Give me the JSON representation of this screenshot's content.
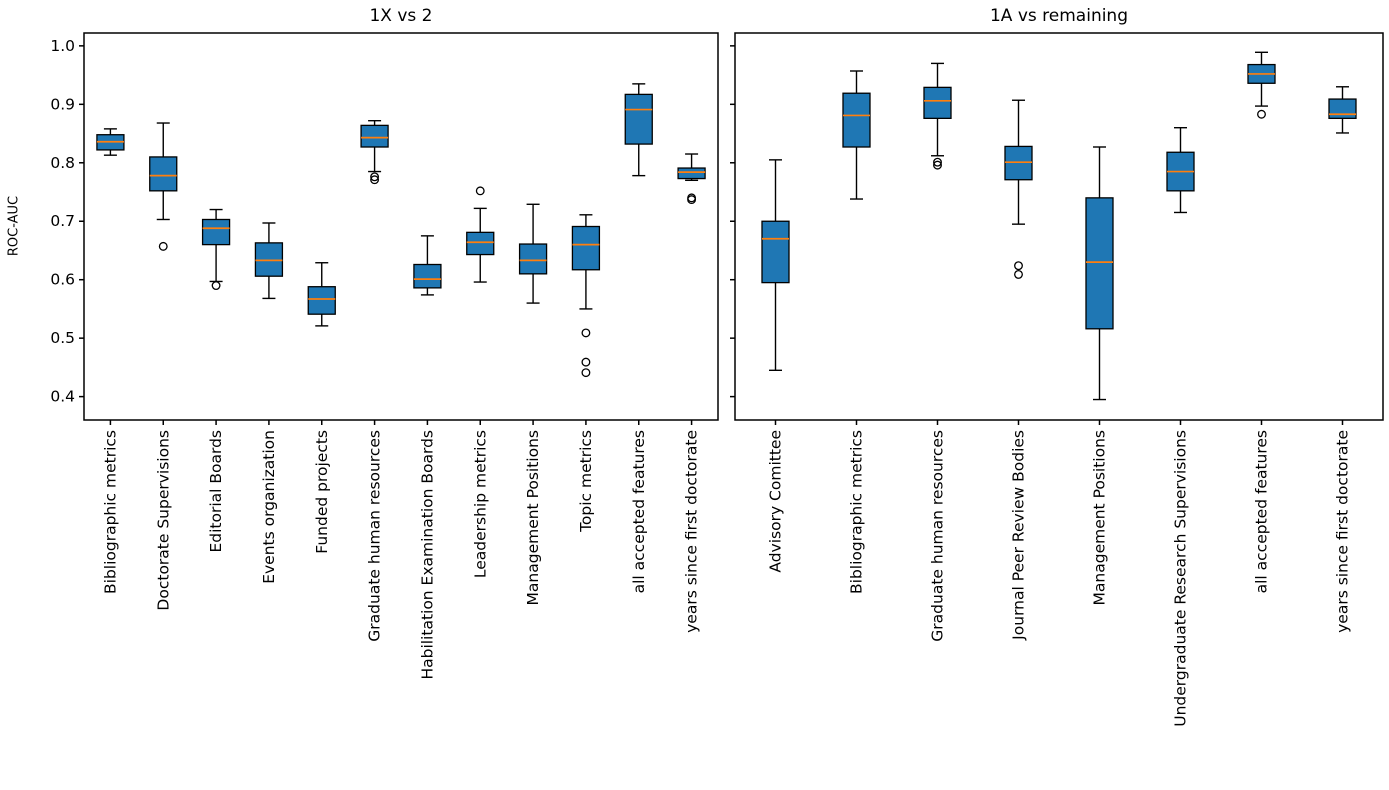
{
  "figure": {
    "background": "#ffffff",
    "text_color": "#000000"
  },
  "chart_data": [
    {
      "type": "box",
      "title": "1X vs 2",
      "ylabel": "ROC-AUC",
      "xlabel": "",
      "ylim": [
        0.36,
        1.022
      ],
      "yticks": [
        0.4,
        0.5,
        0.6,
        0.7,
        0.8,
        0.9,
        1.0
      ],
      "ytick_labels": [
        "0.4",
        "0.5",
        "0.6",
        "0.7",
        "0.8",
        "0.9",
        "1.0"
      ],
      "show_ytick_labels": true,
      "grid": false,
      "legend": "none",
      "box_color": "#1f77b4",
      "median_color": "#ff7f0e",
      "edge_color": "#000000",
      "categories": [
        "Bibliographic metrics",
        "Doctorate Supervisions",
        "Editorial Boards",
        "Events organization",
        "Funded projects",
        "Graduate human resources",
        "Habilitation Examination Boards",
        "Leadership metrics",
        "Management Positions",
        "Topic metrics",
        "all accepted features",
        "years since first doctorate"
      ],
      "boxes": [
        {
          "category": "Bibliographic metrics",
          "whislo": 0.813,
          "q1": 0.822,
          "med": 0.836,
          "q3": 0.848,
          "whishi": 0.858,
          "fliers": []
        },
        {
          "category": "Doctorate Supervisions",
          "whislo": 0.703,
          "q1": 0.752,
          "med": 0.778,
          "q3": 0.81,
          "whishi": 0.868,
          "fliers": [
            0.657
          ]
        },
        {
          "category": "Editorial Boards",
          "whislo": 0.597,
          "q1": 0.66,
          "med": 0.688,
          "q3": 0.703,
          "whishi": 0.72,
          "fliers": [
            0.59
          ]
        },
        {
          "category": "Events organization",
          "whislo": 0.568,
          "q1": 0.606,
          "med": 0.633,
          "q3": 0.663,
          "whishi": 0.697,
          "fliers": []
        },
        {
          "category": "Funded projects",
          "whislo": 0.521,
          "q1": 0.541,
          "med": 0.567,
          "q3": 0.588,
          "whishi": 0.629,
          "fliers": []
        },
        {
          "category": "Graduate human resources",
          "whislo": 0.785,
          "q1": 0.827,
          "med": 0.843,
          "q3": 0.864,
          "whishi": 0.872,
          "fliers": [
            0.776,
            0.771
          ]
        },
        {
          "category": "Habilitation Examination Boards",
          "whislo": 0.574,
          "q1": 0.586,
          "med": 0.601,
          "q3": 0.626,
          "whishi": 0.675,
          "fliers": []
        },
        {
          "category": "Leadership metrics",
          "whislo": 0.596,
          "q1": 0.643,
          "med": 0.664,
          "q3": 0.681,
          "whishi": 0.722,
          "fliers": [
            0.752
          ]
        },
        {
          "category": "Management Positions",
          "whislo": 0.56,
          "q1": 0.61,
          "med": 0.633,
          "q3": 0.661,
          "whishi": 0.729,
          "fliers": []
        },
        {
          "category": "Topic metrics",
          "whislo": 0.55,
          "q1": 0.617,
          "med": 0.66,
          "q3": 0.691,
          "whishi": 0.711,
          "fliers": [
            0.509,
            0.459,
            0.441
          ]
        },
        {
          "category": "all accepted features",
          "whislo": 0.778,
          "q1": 0.832,
          "med": 0.891,
          "q3": 0.917,
          "whishi": 0.935,
          "fliers": []
        },
        {
          "category": "years since first doctorate",
          "whislo": 0.77,
          "q1": 0.773,
          "med": 0.784,
          "q3": 0.791,
          "whishi": 0.815,
          "fliers": [
            0.74,
            0.737
          ]
        }
      ]
    },
    {
      "type": "box",
      "title": "1A vs remaining",
      "ylabel": "",
      "xlabel": "",
      "ylim": [
        0.36,
        1.022
      ],
      "yticks": [
        0.4,
        0.5,
        0.6,
        0.7,
        0.8,
        0.9,
        1.0
      ],
      "ytick_labels": [
        "0.4",
        "0.5",
        "0.6",
        "0.7",
        "0.8",
        "0.9",
        "1.0"
      ],
      "show_ytick_labels": false,
      "grid": false,
      "legend": "none",
      "box_color": "#1f77b4",
      "median_color": "#ff7f0e",
      "edge_color": "#000000",
      "categories": [
        "Advisory Comittee",
        "Bibliographic metrics",
        "Graduate human resources",
        "Journal Peer Review Bodies",
        "Management Positions",
        "Undergraduate Research Supervisions",
        "all accepted features",
        "years since first doctorate"
      ],
      "boxes": [
        {
          "category": "Advisory Comittee",
          "whislo": 0.445,
          "q1": 0.595,
          "med": 0.67,
          "q3": 0.7,
          "whishi": 0.805,
          "fliers": []
        },
        {
          "category": "Bibliographic metrics",
          "whislo": 0.738,
          "q1": 0.827,
          "med": 0.881,
          "q3": 0.919,
          "whishi": 0.957,
          "fliers": []
        },
        {
          "category": "Graduate human resources",
          "whislo": 0.812,
          "q1": 0.876,
          "med": 0.906,
          "q3": 0.929,
          "whishi": 0.97,
          "fliers": [
            0.801,
            0.796
          ]
        },
        {
          "category": "Journal Peer Review Bodies",
          "whislo": 0.695,
          "q1": 0.771,
          "med": 0.801,
          "q3": 0.828,
          "whishi": 0.907,
          "fliers": [
            0.624,
            0.609
          ]
        },
        {
          "category": "Management Positions",
          "whislo": 0.395,
          "q1": 0.516,
          "med": 0.63,
          "q3": 0.74,
          "whishi": 0.827,
          "fliers": []
        },
        {
          "category": "Undergraduate Research Supervisions",
          "whislo": 0.715,
          "q1": 0.752,
          "med": 0.785,
          "q3": 0.818,
          "whishi": 0.86,
          "fliers": []
        },
        {
          "category": "all accepted features",
          "whislo": 0.897,
          "q1": 0.936,
          "med": 0.952,
          "q3": 0.968,
          "whishi": 0.989,
          "fliers": [
            0.883
          ]
        },
        {
          "category": "years since first doctorate",
          "whislo": 0.851,
          "q1": 0.876,
          "med": 0.883,
          "q3": 0.909,
          "whishi": 0.93,
          "fliers": []
        }
      ]
    }
  ]
}
